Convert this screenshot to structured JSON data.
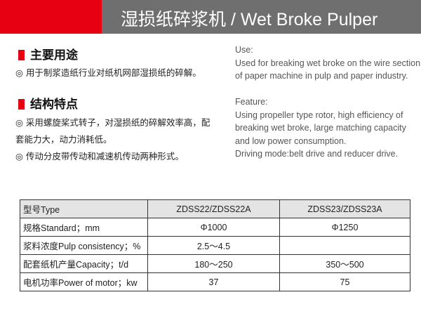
{
  "header": {
    "title": "湿损纸碎浆机 / Wet Broke Pulper"
  },
  "use": {
    "heading_cn": "主要用途",
    "lines_cn": [
      "◎ 用于制浆造纸行业对纸机网部湿损纸的碎解。"
    ],
    "heading_en": "Use:",
    "lines_en": [
      "Used for breaking wet broke on the wire section",
      "of paper machine in pulp and paper industry."
    ]
  },
  "feature": {
    "heading_cn": "结构特点",
    "lines_cn": [
      "◎ 采用螺旋桨式转子，对湿损纸的碎解效率高，配",
      "套能力大，动力消耗低。",
      "◎ 传动分皮带传动和减速机传动两种形式。"
    ],
    "heading_en": "Feature:",
    "lines_en": [
      "Using propeller type rotor, high efficiency of",
      "breaking wet broke, large matching capacity",
      "and low power consumption.",
      "Driving mode:belt drive and reducer drive."
    ]
  },
  "table": {
    "rows": [
      [
        "型号Type",
        "ZDSS22/ZDSS22A",
        "ZDSS23/ZDSS23A"
      ],
      [
        "规格Standard；mm",
        "Φ1000",
        "Φ1250"
      ],
      [
        "浆料浓度Pulp consistency；%",
        "2.5～4.5"
      ],
      [
        "配套纸机产量Capacity；t/d",
        "180～250",
        "350～500"
      ],
      [
        "电机功率Power of  motor；kw",
        "37",
        "75"
      ]
    ]
  }
}
